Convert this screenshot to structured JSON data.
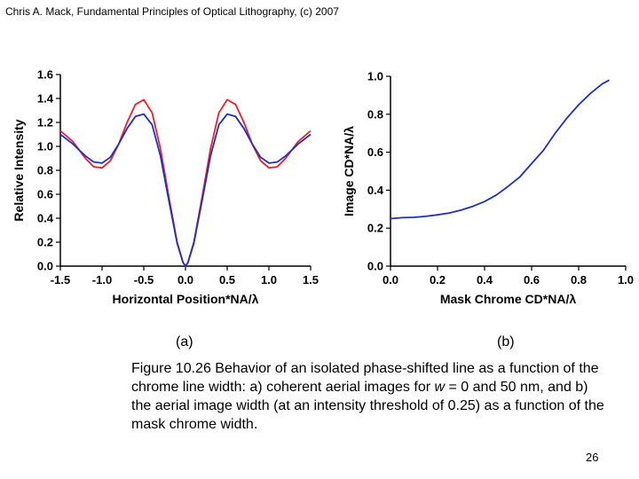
{
  "header": {
    "text": "Chris A. Mack, Fundamental Principles of Optical Lithography, (c) 2007"
  },
  "panels": {
    "a_label": "(a)",
    "b_label": "(b)"
  },
  "caption": {
    "part1": "Figure 10.26  Behavior of an isolated phase-shifted line as a function of the chrome line width:  a) coherent aerial images for ",
    "var": "w",
    "part2": " = 0 and 50 nm, and b) the aerial image width (at an intensity threshold of 0.25) as a function of the mask chrome width."
  },
  "page_number": "26",
  "colors": {
    "red": "#e8212b",
    "blue": "#1f2fbf",
    "axis": "#000000"
  },
  "chart_data": [
    {
      "type": "line",
      "xlabel": "Horizontal Position*NA/λ",
      "ylabel": "Relative Intensity",
      "xlim": [
        -1.5,
        1.5
      ],
      "ylim": [
        0,
        1.6
      ],
      "xticks": [
        "-1.5",
        "-1.0",
        "-0.5",
        "0.0",
        "0.5",
        "1.0",
        "1.5"
      ],
      "yticks": [
        "0.0",
        "0.2",
        "0.4",
        "0.6",
        "0.8",
        "1.0",
        "1.2",
        "1.4",
        "1.6"
      ],
      "series": [
        {
          "color": "#e8212b",
          "x": [
            -1.5,
            -1.35,
            -1.2,
            -1.1,
            -1.0,
            -0.9,
            -0.8,
            -0.7,
            -0.6,
            -0.5,
            -0.4,
            -0.3,
            -0.2,
            -0.1,
            -0.03,
            0.0,
            0.03,
            0.1,
            0.2,
            0.3,
            0.4,
            0.5,
            0.6,
            0.7,
            0.8,
            0.9,
            1.0,
            1.1,
            1.2,
            1.35,
            1.5
          ],
          "y": [
            1.13,
            1.04,
            0.9,
            0.83,
            0.82,
            0.88,
            1.02,
            1.2,
            1.35,
            1.39,
            1.28,
            0.98,
            0.58,
            0.2,
            0.03,
            0.0,
            0.03,
            0.2,
            0.58,
            0.98,
            1.28,
            1.39,
            1.35,
            1.2,
            1.02,
            0.88,
            0.82,
            0.83,
            0.9,
            1.04,
            1.13
          ]
        },
        {
          "color": "#1f2fbf",
          "x": [
            -1.5,
            -1.35,
            -1.2,
            -1.1,
            -1.0,
            -0.9,
            -0.8,
            -0.7,
            -0.6,
            -0.5,
            -0.4,
            -0.3,
            -0.2,
            -0.1,
            -0.03,
            0.0,
            0.03,
            0.1,
            0.2,
            0.3,
            0.4,
            0.5,
            0.6,
            0.7,
            0.8,
            0.9,
            1.0,
            1.1,
            1.2,
            1.35,
            1.5
          ],
          "y": [
            1.1,
            1.02,
            0.92,
            0.87,
            0.86,
            0.91,
            1.02,
            1.15,
            1.25,
            1.27,
            1.18,
            0.92,
            0.55,
            0.19,
            0.03,
            0.0,
            0.03,
            0.19,
            0.55,
            0.92,
            1.18,
            1.27,
            1.25,
            1.15,
            1.02,
            0.91,
            0.86,
            0.87,
            0.92,
            1.02,
            1.1
          ]
        }
      ]
    },
    {
      "type": "line",
      "xlabel": "Mask Chrome CD*NA/λ",
      "ylabel": "Image CD*NA/λ",
      "xlim": [
        0,
        1.0
      ],
      "ylim": [
        0,
        1.0
      ],
      "xticks": [
        "0.0",
        "0.2",
        "0.4",
        "0.6",
        "0.8",
        "1.0"
      ],
      "yticks": [
        "0.0",
        "0.2",
        "0.4",
        "0.6",
        "0.8",
        "1.0"
      ],
      "series": [
        {
          "color": "#1f2fbf",
          "x": [
            0.0,
            0.05,
            0.1,
            0.15,
            0.2,
            0.25,
            0.3,
            0.35,
            0.4,
            0.45,
            0.5,
            0.55,
            0.6,
            0.65,
            0.7,
            0.75,
            0.8,
            0.85,
            0.9,
            0.93
          ],
          "y": [
            0.25,
            0.255,
            0.257,
            0.262,
            0.27,
            0.28,
            0.295,
            0.315,
            0.34,
            0.375,
            0.42,
            0.47,
            0.54,
            0.61,
            0.7,
            0.78,
            0.85,
            0.91,
            0.96,
            0.98
          ]
        }
      ]
    }
  ]
}
